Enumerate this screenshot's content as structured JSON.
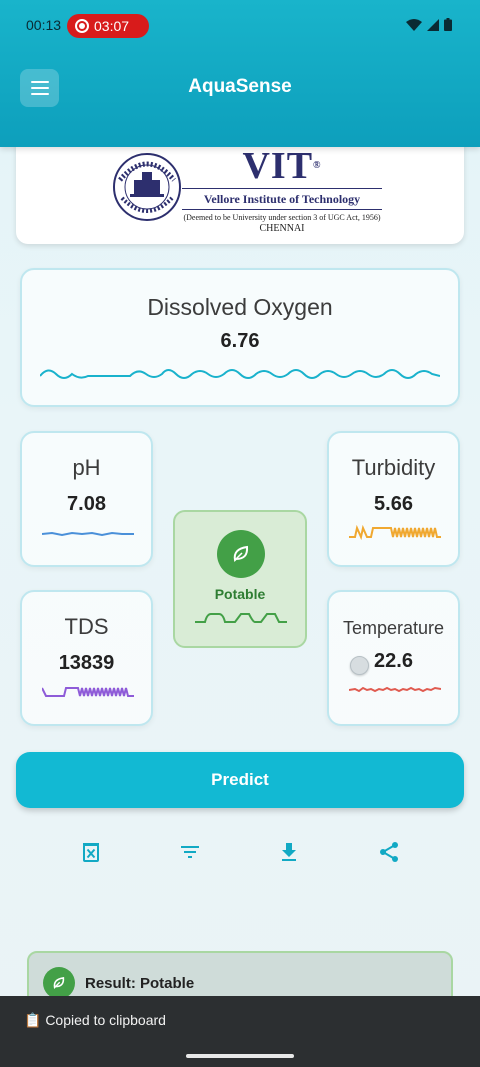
{
  "status_bar": {
    "time": "00:13",
    "recording_time": "03:07",
    "recording_color": "#d81b1b"
  },
  "app_bar": {
    "title": "AquaSense",
    "menu_icon": "hamburger-menu-icon",
    "color": "#12b0c8"
  },
  "logo": {
    "short": "VIT",
    "full_name": "Vellore Institute of Technology",
    "deemed_text": "(Deemed to be University under section 3 of UGC Act, 1956)",
    "city": "CHENNAI",
    "color": "#2d2f6e"
  },
  "sensors": {
    "dissolved_oxygen": {
      "label": "Dissolved Oxygen",
      "value": "6.76",
      "wave_color": "#19b2cc"
    },
    "ph": {
      "label": "pH",
      "value": "7.08",
      "wave_color": "#4a90d9"
    },
    "turbidity": {
      "label": "Turbidity",
      "value": "5.66",
      "wave_color": "#f0a830"
    },
    "tds": {
      "label": "TDS",
      "value": "13839",
      "wave_color": "#8e5bd8"
    },
    "temperature": {
      "label": "Temperature",
      "value": "22.6",
      "wave_color": "#e05a4f"
    }
  },
  "potable_card": {
    "label": "Potable",
    "icon": "leaf-icon",
    "color": "#43a047"
  },
  "predict_button": {
    "label": "Predict",
    "color": "#12b9d3"
  },
  "actions": [
    {
      "name": "clear-icon"
    },
    {
      "name": "filter-icon"
    },
    {
      "name": "download-icon"
    },
    {
      "name": "share-icon"
    }
  ],
  "result": {
    "text": "Result: Potable",
    "icon": "leaf-icon"
  },
  "snackbar": {
    "text": "📋 Copied to clipboard"
  }
}
